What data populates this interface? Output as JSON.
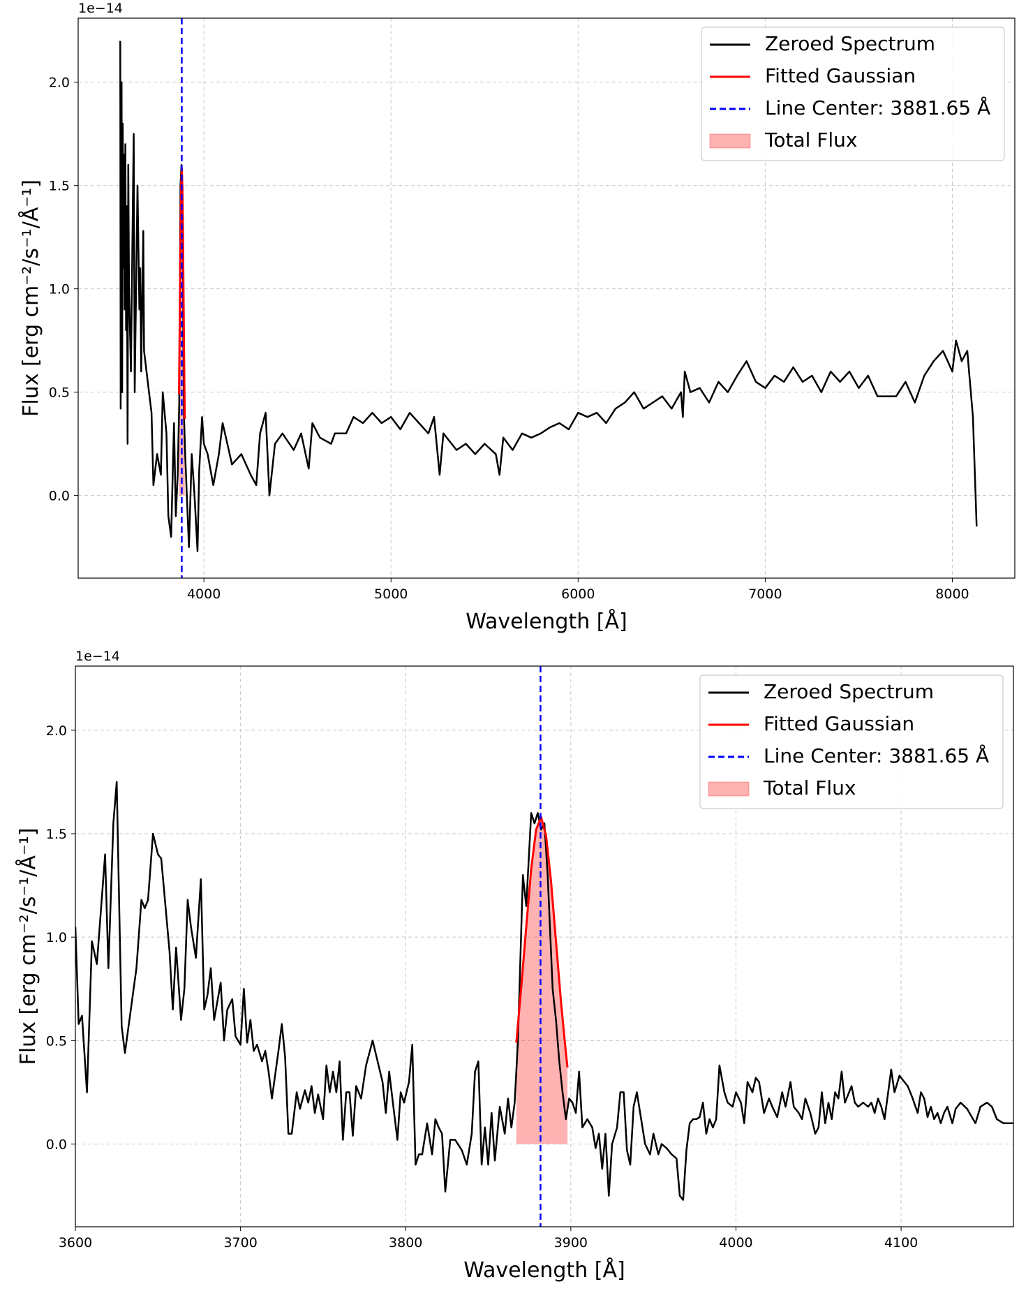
{
  "chart_data": [
    {
      "type": "line",
      "offset_text": "1e−14",
      "xlabel": "Wavelength [Å]",
      "ylabel": "Flux [erg cm⁻²/s⁻¹/Å⁻¹]",
      "xlim": [
        3328,
        8334
      ],
      "ylim": [
        -0.4,
        2.31
      ],
      "xticks": [
        4000,
        5000,
        6000,
        7000,
        8000
      ],
      "yticks": [
        {
          "value": 0,
          "label": "0.0"
        },
        {
          "value": 0.5,
          "label": "0.5"
        },
        {
          "value": 1,
          "label": "1.0"
        },
        {
          "value": 1.5,
          "label": "1.5"
        },
        {
          "value": 2,
          "label": "2.0"
        }
      ],
      "grid": true,
      "legend": "upper right",
      "series": [
        {
          "name": "Zeroed Spectrum",
          "style": "line",
          "color": "#000000",
          "x": [
            3553,
            3555,
            3560,
            3563,
            3566,
            3570,
            3573,
            3576,
            3580,
            3584,
            3588,
            3592,
            3596,
            3600,
            3610,
            3620,
            3625,
            3630,
            3645,
            3655,
            3660,
            3665,
            3676,
            3680,
            3700,
            3720,
            3730,
            3750,
            3770,
            3780,
            3800,
            3810,
            3825,
            3840,
            3850,
            3860,
            3868,
            3875,
            3880,
            3886,
            3893,
            3900,
            3920,
            3935,
            3950,
            3966,
            3975,
            3990,
            4000,
            4020,
            4050,
            4080,
            4100,
            4150,
            4200,
            4250,
            4280,
            4300,
            4330,
            4350,
            4380,
            4420,
            4480,
            4520,
            4560,
            4580,
            4620,
            4680,
            4700,
            4760,
            4800,
            4850,
            4900,
            4950,
            5000,
            5050,
            5100,
            5150,
            5200,
            5230,
            5260,
            5280,
            5350,
            5400,
            5450,
            5500,
            5560,
            5580,
            5600,
            5650,
            5700,
            5750,
            5800,
            5850,
            5900,
            5950,
            6000,
            6050,
            6100,
            6150,
            6200,
            6250,
            6300,
            6350,
            6400,
            6450,
            6500,
            6550,
            6560,
            6570,
            6600,
            6650,
            6700,
            6750,
            6800,
            6850,
            6900,
            6950,
            7000,
            7050,
            7100,
            7150,
            7200,
            7250,
            7300,
            7350,
            7400,
            7450,
            7500,
            7550,
            7600,
            7700,
            7750,
            7800,
            7850,
            7900,
            7950,
            8000,
            8020,
            8050,
            8080,
            8110,
            8130
          ],
          "values": [
            2.2,
            0.42,
            2.0,
            0.5,
            1.8,
            1.1,
            1.65,
            0.9,
            1.7,
            0.8,
            1.4,
            0.25,
            1.6,
            1.0,
            0.6,
            1.4,
            1.75,
            0.5,
            1.5,
            0.9,
            1.1,
            0.6,
            1.28,
            0.7,
            0.55,
            0.4,
            0.05,
            0.2,
            0.1,
            0.5,
            0.3,
            -0.1,
            -0.2,
            0.35,
            -0.1,
            0.1,
            0.45,
            1.5,
            1.6,
            1.3,
            0.4,
            0.2,
            -0.25,
            0.2,
            0.0,
            -0.27,
            0.12,
            0.38,
            0.25,
            0.2,
            0.05,
            0.2,
            0.35,
            0.15,
            0.2,
            0.1,
            0.05,
            0.3,
            0.4,
            0.0,
            0.25,
            0.3,
            0.22,
            0.3,
            0.13,
            0.35,
            0.28,
            0.25,
            0.3,
            0.3,
            0.38,
            0.35,
            0.4,
            0.35,
            0.38,
            0.32,
            0.4,
            0.35,
            0.3,
            0.38,
            0.1,
            0.3,
            0.22,
            0.25,
            0.2,
            0.25,
            0.2,
            0.1,
            0.28,
            0.22,
            0.3,
            0.28,
            0.3,
            0.33,
            0.35,
            0.32,
            0.4,
            0.38,
            0.4,
            0.35,
            0.42,
            0.45,
            0.5,
            0.42,
            0.45,
            0.48,
            0.42,
            0.5,
            0.38,
            0.6,
            0.5,
            0.52,
            0.45,
            0.55,
            0.5,
            0.58,
            0.65,
            0.55,
            0.52,
            0.58,
            0.55,
            0.62,
            0.55,
            0.58,
            0.5,
            0.6,
            0.55,
            0.6,
            0.52,
            0.58,
            0.48,
            0.48,
            0.55,
            0.45,
            0.58,
            0.65,
            0.7,
            0.6,
            0.75,
            0.65,
            0.7,
            0.38,
            -0.15
          ]
        },
        {
          "name": "Fitted Gaussian",
          "style": "line",
          "color": "#ff0000",
          "x": [
            3867,
            3870,
            3873,
            3876,
            3879,
            3882,
            3885,
            3888,
            3891,
            3894,
            3897,
            3898
          ],
          "values": [
            0.49,
            0.76,
            1.05,
            1.33,
            1.52,
            1.58,
            1.49,
            1.27,
            0.98,
            0.69,
            0.44,
            0.37
          ]
        },
        {
          "name": "Line Center: 3881.65 Å",
          "style": "vline",
          "color": "#0000ff",
          "x_value": 3881.65
        },
        {
          "name": "Total Flux",
          "style": "fill",
          "color": "#ff0000",
          "x": [
            3867,
            3870,
            3873,
            3876,
            3879,
            3882,
            3885,
            3888,
            3891,
            3894,
            3897,
            3898
          ],
          "values": [
            0.49,
            0.76,
            1.05,
            1.33,
            1.52,
            1.58,
            1.49,
            1.27,
            0.98,
            0.69,
            0.44,
            0.37
          ]
        }
      ]
    },
    {
      "type": "line",
      "offset_text": "1e−14",
      "xlabel": "Wavelength [Å]",
      "ylabel": "Flux [erg cm⁻²/s⁻¹/Å⁻¹]",
      "xlim": [
        3600,
        4168
      ],
      "ylim": [
        -0.4,
        2.31
      ],
      "xticks": [
        3600,
        3700,
        3800,
        3900,
        4000,
        4100
      ],
      "yticks": [
        {
          "value": 0,
          "label": "0.0"
        },
        {
          "value": 0.5,
          "label": "0.5"
        },
        {
          "value": 1,
          "label": "1.0"
        },
        {
          "value": 1.5,
          "label": "1.5"
        },
        {
          "value": 2,
          "label": "2.0"
        }
      ],
      "grid": true,
      "legend": "upper right",
      "series": [
        {
          "name": "Zeroed Spectrum",
          "style": "line",
          "color": "#000000",
          "x": [
            3600,
            3602,
            3604,
            3607,
            3610,
            3613,
            3618,
            3620,
            3623,
            3625,
            3628,
            3630,
            3637,
            3640,
            3642,
            3644,
            3647,
            3650,
            3652,
            3657,
            3659,
            3661,
            3664,
            3666,
            3668,
            3670,
            3673,
            3676,
            3678,
            3680,
            3682,
            3684,
            3688,
            3690,
            3692,
            3695,
            3697,
            3700,
            3702,
            3704,
            3706,
            3708,
            3710,
            3713,
            3715,
            3717,
            3719,
            3723,
            3725,
            3727,
            3729,
            3731,
            3734,
            3736,
            3739,
            3741,
            3743,
            3745,
            3747,
            3750,
            3752,
            3754,
            3756,
            3758,
            3760,
            3762,
            3764,
            3766,
            3768,
            3770,
            3773,
            3776,
            3780,
            3783,
            3786,
            3788,
            3790,
            3793,
            3795,
            3797,
            3799,
            3802,
            3804,
            3806,
            3808,
            3810,
            3813,
            3816,
            3818,
            3820,
            3822,
            3824,
            3827,
            3830,
            3834,
            3837,
            3840,
            3842,
            3844,
            3846,
            3848,
            3850,
            3852,
            3854,
            3857,
            3860,
            3862,
            3864,
            3866,
            3868,
            3871,
            3873,
            3876,
            3878,
            3880,
            3882,
            3884,
            3886,
            3889,
            3891,
            3893,
            3895,
            3897,
            3899,
            3901,
            3903,
            3905,
            3907,
            3910,
            3913,
            3915,
            3917,
            3919,
            3921,
            3923,
            3925,
            3928,
            3930,
            3932,
            3934,
            3936,
            3938,
            3940,
            3942,
            3945,
            3948,
            3950,
            3953,
            3955,
            3958,
            3961,
            3964,
            3966,
            3968,
            3970,
            3972,
            3974,
            3976,
            3978,
            3980,
            3982,
            3984,
            3986,
            3988,
            3990,
            3993,
            3995,
            3998,
            4000,
            4003,
            4005,
            4007,
            4010,
            4012,
            4014,
            4017,
            4020,
            4022,
            4025,
            4028,
            4030,
            4033,
            4035,
            4038,
            4040,
            4042,
            4045,
            4048,
            4050,
            4052,
            4054,
            4056,
            4058,
            4060,
            4062,
            4064,
            4066,
            4070,
            4072,
            4074,
            4077,
            4080,
            4082,
            4084,
            4086,
            4088,
            4090,
            4094,
            4096,
            4099,
            4102,
            4104,
            4107,
            4110,
            4112,
            4114,
            4116,
            4118,
            4120,
            4122,
            4124,
            4126,
            4128,
            4131,
            4133,
            4136,
            4140,
            4145,
            4148,
            4152,
            4155,
            4158,
            4162,
            4168
          ],
          "values": [
            1.05,
            0.58,
            0.62,
            0.25,
            0.98,
            0.87,
            1.4,
            0.85,
            1.55,
            1.75,
            0.57,
            0.44,
            0.85,
            1.18,
            1.14,
            1.18,
            1.5,
            1.4,
            1.38,
            0.93,
            0.65,
            0.95,
            0.6,
            0.75,
            1.18,
            1.05,
            0.9,
            1.28,
            0.65,
            0.72,
            0.85,
            0.6,
            0.78,
            0.5,
            0.65,
            0.7,
            0.52,
            0.48,
            0.75,
            0.49,
            0.6,
            0.45,
            0.48,
            0.4,
            0.45,
            0.35,
            0.22,
            0.45,
            0.58,
            0.42,
            0.05,
            0.05,
            0.25,
            0.17,
            0.26,
            0.2,
            0.28,
            0.15,
            0.24,
            0.12,
            0.38,
            0.25,
            0.35,
            0.25,
            0.4,
            0.02,
            0.25,
            0.25,
            0.04,
            0.28,
            0.22,
            0.38,
            0.5,
            0.4,
            0.3,
            0.15,
            0.35,
            0.15,
            0.02,
            0.25,
            0.2,
            0.3,
            0.48,
            -0.1,
            -0.05,
            -0.05,
            0.1,
            -0.05,
            0.12,
            0.08,
            0.05,
            -0.23,
            0.02,
            0.02,
            -0.03,
            -0.1,
            0.05,
            0.35,
            0.4,
            -0.1,
            0.08,
            -0.1,
            0.15,
            -0.08,
            0.18,
            0.05,
            0.22,
            0.08,
            0.2,
            0.5,
            1.3,
            1.15,
            1.6,
            1.55,
            1.6,
            1.52,
            1.55,
            1.3,
            0.75,
            0.6,
            0.4,
            0.25,
            0.12,
            0.22,
            0.2,
            0.15,
            0.35,
            0.08,
            0.12,
            0.08,
            -0.02,
            0.05,
            -0.12,
            0.05,
            -0.25,
            0.0,
            0.08,
            0.25,
            0.25,
            -0.03,
            -0.1,
            0.18,
            0.25,
            0.15,
            0.0,
            -0.05,
            0.05,
            -0.05,
            0.0,
            -0.02,
            -0.05,
            -0.07,
            -0.25,
            -0.27,
            -0.03,
            0.1,
            0.12,
            0.12,
            0.13,
            0.2,
            0.05,
            0.12,
            0.08,
            0.12,
            0.38,
            0.25,
            0.2,
            0.18,
            0.25,
            0.2,
            0.1,
            0.3,
            0.25,
            0.32,
            0.3,
            0.15,
            0.22,
            0.18,
            0.13,
            0.25,
            0.18,
            0.3,
            0.18,
            0.15,
            0.12,
            0.22,
            0.15,
            0.05,
            0.08,
            0.25,
            0.1,
            0.2,
            0.12,
            0.25,
            0.22,
            0.35,
            0.2,
            0.28,
            0.2,
            0.18,
            0.2,
            0.18,
            0.2,
            0.15,
            0.22,
            0.18,
            0.12,
            0.36,
            0.25,
            0.33,
            0.3,
            0.28,
            0.22,
            0.15,
            0.25,
            0.22,
            0.13,
            0.18,
            0.12,
            0.15,
            0.1,
            0.15,
            0.18,
            0.1,
            0.17,
            0.2,
            0.17,
            0.1,
            0.18,
            0.2,
            0.18,
            0.12,
            0.1,
            0.1
          ]
        },
        {
          "name": "Fitted Gaussian",
          "style": "line",
          "color": "#ff0000",
          "x": [
            3867,
            3870,
            3873,
            3876,
            3879,
            3882,
            3885,
            3888,
            3891,
            3894,
            3897,
            3898
          ],
          "values": [
            0.49,
            0.76,
            1.05,
            1.33,
            1.52,
            1.58,
            1.49,
            1.27,
            0.98,
            0.69,
            0.44,
            0.37
          ]
        },
        {
          "name": "Line Center: 3881.65 Å",
          "style": "vline",
          "color": "#0000ff",
          "x_value": 3881.65
        },
        {
          "name": "Total Flux",
          "style": "fill",
          "color": "#ff0000",
          "x": [
            3867,
            3870,
            3873,
            3876,
            3879,
            3882,
            3885,
            3888,
            3891,
            3894,
            3897,
            3898
          ],
          "values": [
            0.49,
            0.76,
            1.05,
            1.33,
            1.52,
            1.58,
            1.49,
            1.27,
            0.98,
            0.69,
            0.44,
            0.37
          ]
        }
      ]
    }
  ]
}
